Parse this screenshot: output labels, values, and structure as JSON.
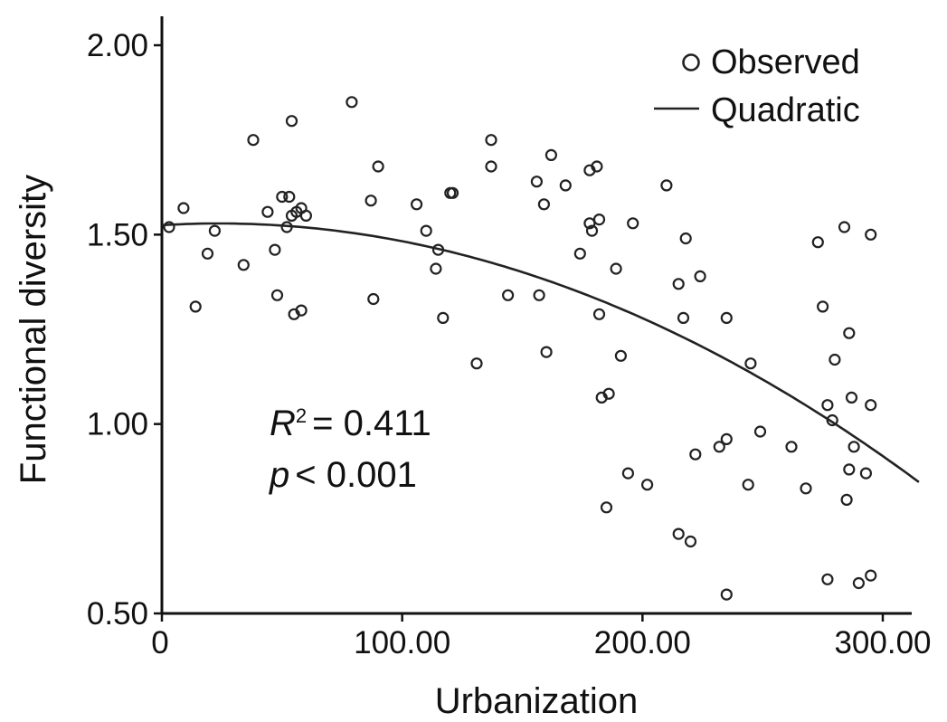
{
  "chart_data": {
    "type": "scatter",
    "xlabel": "Urbanization",
    "ylabel": "Functional diversity",
    "xlim": [
      0,
      315
    ],
    "ylim": [
      0.5,
      2.0
    ],
    "xticks": [
      "0",
      "100.00",
      "200.00",
      "300.00"
    ],
    "xtick_values": [
      0,
      100,
      200,
      300
    ],
    "yticks": [
      "0.50",
      "1.00",
      "1.50",
      "2.00"
    ],
    "ytick_values": [
      0.5,
      1.0,
      1.5,
      2.0
    ],
    "legend": {
      "position": "top-right",
      "observed_label": "Observed",
      "fit_label": "Quadratic"
    },
    "annotation": {
      "r_symbol": "R",
      "r_superscript": "2",
      "r_value": "= 0.411",
      "p_symbol": "p",
      "p_value": "< 0.001"
    },
    "fit": {
      "type": "quadratic",
      "a": 1.525,
      "b": 0.00038,
      "c": -8.04e-06
    },
    "series": [
      {
        "points": [
          [
            3,
            1.52
          ],
          [
            9,
            1.57
          ],
          [
            14,
            1.31
          ],
          [
            19,
            1.45
          ],
          [
            22,
            1.51
          ],
          [
            34,
            1.42
          ],
          [
            38,
            1.75
          ],
          [
            44,
            1.56
          ],
          [
            47,
            1.46
          ],
          [
            48,
            1.34
          ],
          [
            50,
            1.6
          ],
          [
            52,
            1.52
          ],
          [
            53,
            1.6
          ],
          [
            54,
            1.55
          ],
          [
            54,
            1.8
          ],
          [
            55,
            1.29
          ],
          [
            56,
            1.56
          ],
          [
            58,
            1.57
          ],
          [
            58,
            1.3
          ],
          [
            60,
            1.55
          ],
          [
            79,
            1.85
          ],
          [
            87,
            1.59
          ],
          [
            88,
            1.33
          ],
          [
            90,
            1.68
          ],
          [
            106,
            1.58
          ],
          [
            110,
            1.51
          ],
          [
            114,
            1.41
          ],
          [
            115,
            1.46
          ],
          [
            117,
            1.28
          ],
          [
            120,
            1.61
          ],
          [
            121,
            1.61
          ],
          [
            131,
            1.16
          ],
          [
            137,
            1.68
          ],
          [
            137,
            1.75
          ],
          [
            144,
            1.34
          ],
          [
            156,
            1.64
          ],
          [
            157,
            1.34
          ],
          [
            159,
            1.58
          ],
          [
            160,
            1.19
          ],
          [
            162,
            1.71
          ],
          [
            168,
            1.63
          ],
          [
            174,
            1.45
          ],
          [
            178,
            1.67
          ],
          [
            178,
            1.53
          ],
          [
            179,
            1.51
          ],
          [
            181,
            1.68
          ],
          [
            182,
            1.54
          ],
          [
            182,
            1.29
          ],
          [
            183,
            1.07
          ],
          [
            185,
            0.78
          ],
          [
            186,
            1.08
          ],
          [
            189,
            1.41
          ],
          [
            191,
            1.18
          ],
          [
            194,
            0.87
          ],
          [
            196,
            1.53
          ],
          [
            202,
            0.84
          ],
          [
            210,
            1.63
          ],
          [
            215,
            1.37
          ],
          [
            215,
            0.71
          ],
          [
            217,
            1.28
          ],
          [
            218,
            1.49
          ],
          [
            220,
            0.69
          ],
          [
            222,
            0.92
          ],
          [
            224,
            1.39
          ],
          [
            232,
            0.94
          ],
          [
            235,
            0.96
          ],
          [
            235,
            1.28
          ],
          [
            235,
            0.55
          ],
          [
            244,
            0.84
          ],
          [
            245,
            1.16
          ],
          [
            249,
            0.98
          ],
          [
            262,
            0.94
          ],
          [
            268,
            0.83
          ],
          [
            273,
            1.48
          ],
          [
            275,
            1.31
          ],
          [
            277,
            1.05
          ],
          [
            277,
            0.59
          ],
          [
            279,
            1.01
          ],
          [
            280,
            1.17
          ],
          [
            284,
            1.52
          ],
          [
            285,
            0.8
          ],
          [
            286,
            1.24
          ],
          [
            286,
            0.88
          ],
          [
            287,
            1.07
          ],
          [
            288,
            0.94
          ],
          [
            290,
            0.58
          ],
          [
            293,
            0.87
          ],
          [
            295,
            1.05
          ],
          [
            295,
            1.5
          ],
          [
            295,
            0.6
          ]
        ]
      }
    ]
  }
}
